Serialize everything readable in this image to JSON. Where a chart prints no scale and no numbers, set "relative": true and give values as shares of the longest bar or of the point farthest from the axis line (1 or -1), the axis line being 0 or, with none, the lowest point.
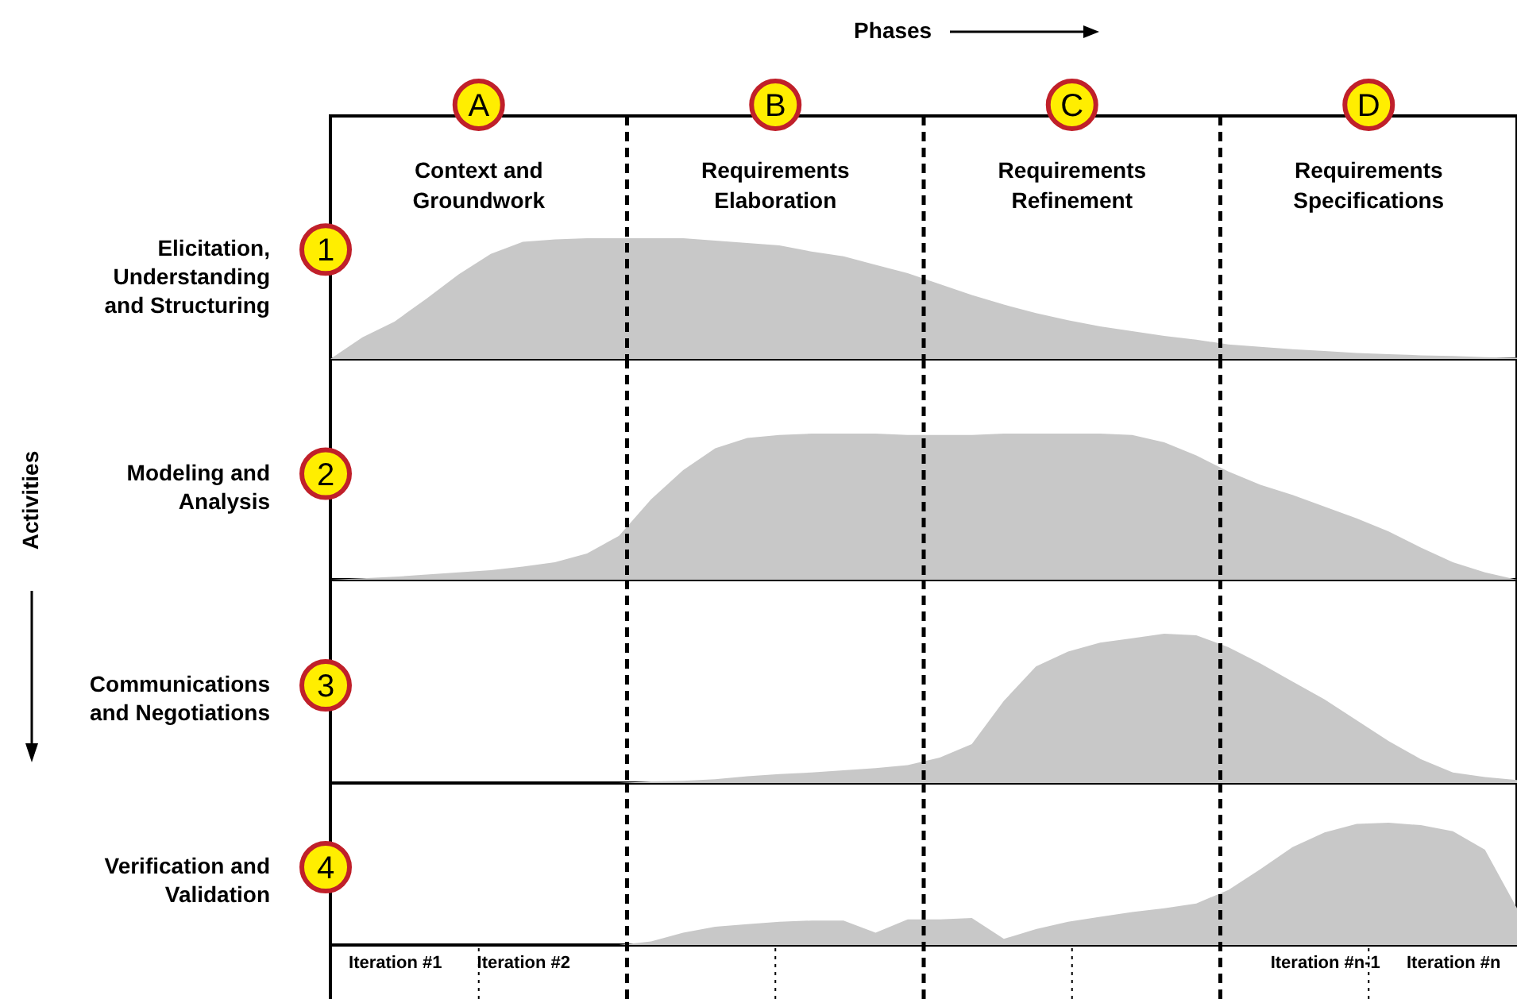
{
  "chart_data": [
    {
      "type": "area",
      "title": "1",
      "ylabel": "Elicitation, Understanding and Structuring",
      "relative": true,
      "color": "#c8c8c8",
      "x2label": "Phases",
      "annotations": [
        "A",
        "Context and Groundwork",
        "B",
        "Requirements Elaboration",
        "C",
        "Requirements Refinement",
        "D",
        "Requirements Specifications"
      ],
      "categories": [
        null,
        null,
        null,
        null,
        null,
        null,
        null,
        null,
        null,
        null,
        null,
        null,
        null,
        null,
        null,
        null,
        null,
        null,
        null,
        null,
        null,
        null,
        null,
        null,
        null,
        null,
        null,
        null,
        null,
        null,
        null,
        null,
        null,
        null,
        null,
        null,
        null,
        null
      ],
      "values": [
        0,
        0.18,
        0.31,
        0.5,
        0.7,
        0.87,
        0.97,
        0.99,
        1,
        1,
        1,
        1,
        0.98,
        0.96,
        0.94,
        0.89,
        0.85,
        0.78,
        0.71,
        0.62,
        0.53,
        0.45,
        0.38,
        0.32,
        0.27,
        0.23,
        0.19,
        0.16,
        0.12,
        0.1,
        0.08,
        0.065,
        0.05,
        0.04,
        0.03,
        0.025,
        0.015,
        0.01
      ]
    },
    {
      "type": "area",
      "title": "2",
      "ylabel": "Modeling and Analysis",
      "relative": true,
      "color": "#c8c8c8",
      "annotations": [
        "Activities"
      ],
      "categories": [
        null,
        null,
        null,
        null,
        null,
        null,
        null,
        null,
        null,
        null,
        null,
        null,
        null,
        null,
        null,
        null,
        null,
        null,
        null,
        null,
        null,
        null,
        null,
        null,
        null,
        null,
        null,
        null,
        null,
        null,
        null,
        null,
        null,
        null,
        null,
        null,
        null,
        null
      ],
      "values": [
        0,
        0.01,
        0.02,
        0.035,
        0.05,
        0.065,
        0.09,
        0.12,
        0.18,
        0.3,
        0.55,
        0.75,
        0.9,
        0.97,
        0.99,
        1,
        1,
        1,
        0.99,
        0.99,
        0.99,
        1,
        1,
        1,
        1,
        0.99,
        0.94,
        0.85,
        0.74,
        0.65,
        0.58,
        0.5,
        0.42,
        0.33,
        0.22,
        0.12,
        0.05,
        0
      ]
    },
    {
      "type": "area",
      "title": "3",
      "ylabel": "Communications and Negotiations",
      "relative": true,
      "color": "#c8c8c8",
      "categories": [
        null,
        null,
        null,
        null,
        null,
        null,
        null,
        null,
        null,
        null,
        null,
        null,
        null,
        null,
        null,
        null,
        null,
        null,
        null,
        null,
        null,
        null,
        null,
        null,
        null,
        null,
        null,
        null,
        null,
        null,
        null,
        null,
        null,
        null,
        null,
        null,
        null,
        null
      ],
      "values": [
        0,
        0,
        0,
        0,
        0,
        0,
        0,
        0,
        0,
        0,
        0.01,
        0.015,
        0.025,
        0.045,
        0.06,
        0.07,
        0.085,
        0.1,
        0.12,
        0.17,
        0.26,
        0.55,
        0.78,
        0.88,
        0.94,
        0.97,
        1,
        0.99,
        0.91,
        0.8,
        0.68,
        0.56,
        0.42,
        0.28,
        0.16,
        0.07,
        0.04,
        0.02
      ]
    },
    {
      "type": "area",
      "title": "4",
      "ylabel": "Verification and Validation",
      "relative": true,
      "color": "#c8c8c8",
      "tick_labels": "x",
      "categories": [
        null,
        null,
        "Iteration #1",
        null,
        null,
        null,
        "Iteration #2",
        null,
        null,
        null,
        null,
        null,
        null,
        null,
        null,
        null,
        null,
        null,
        null,
        null,
        null,
        null,
        null,
        null,
        null,
        null,
        null,
        null,
        null,
        null,
        null,
        "Iteration #n-1",
        null,
        null,
        null,
        "Iteration #n",
        null,
        null
      ],
      "values": [
        0,
        0,
        0,
        0,
        0,
        0,
        0,
        0,
        0,
        0,
        0.03,
        0.1,
        0.15,
        0.17,
        0.19,
        0.2,
        0.2,
        0.1,
        0.21,
        0.21,
        0.22,
        0.05,
        0.13,
        0.19,
        0.23,
        0.27,
        0.3,
        0.34,
        0.45,
        0.62,
        0.8,
        0.92,
        0.99,
        1,
        0.98,
        0.93,
        0.78,
        0.3
      ]
    }
  ]
}
